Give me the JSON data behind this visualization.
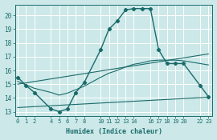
{
  "xlabel": "Humidex (Indice chaleur)",
  "bg_color": "#cce8e8",
  "grid_color": "#ffffff",
  "line_color": "#1a6b6b",
  "line1_x": [
    0,
    1,
    2,
    4,
    5,
    6,
    7,
    8,
    10,
    11,
    12,
    13,
    14,
    15,
    16,
    17,
    18,
    19,
    20,
    22,
    23
  ],
  "line1_y": [
    15.5,
    14.9,
    14.4,
    13.2,
    13.0,
    13.2,
    14.4,
    15.1,
    17.5,
    19.0,
    19.6,
    20.4,
    20.5,
    20.5,
    20.5,
    17.5,
    16.5,
    16.5,
    16.5,
    14.9,
    14.1
  ],
  "line2_x": [
    0,
    1,
    2,
    4,
    5,
    6,
    7,
    8,
    10,
    11,
    12,
    13,
    14,
    15,
    16,
    17,
    18,
    19,
    20,
    22,
    23
  ],
  "line2_y": [
    15.2,
    14.95,
    14.7,
    14.4,
    14.2,
    14.35,
    14.6,
    14.85,
    15.5,
    15.8,
    16.0,
    16.25,
    16.45,
    16.55,
    16.7,
    16.75,
    16.75,
    16.75,
    16.7,
    16.5,
    16.4
  ],
  "line3_x": [
    0,
    23
  ],
  "line3_y": [
    15.0,
    17.2
  ],
  "line4_x": [
    0,
    23
  ],
  "line4_y": [
    13.3,
    14.05
  ],
  "xticks": [
    0,
    1,
    2,
    4,
    5,
    6,
    7,
    8,
    10,
    11,
    12,
    13,
    14,
    16,
    17,
    18,
    19,
    20,
    22,
    23
  ],
  "yticks": [
    13,
    14,
    15,
    16,
    17,
    18,
    19,
    20
  ],
  "xlim": [
    -0.3,
    23.5
  ],
  "ylim": [
    12.7,
    20.8
  ]
}
